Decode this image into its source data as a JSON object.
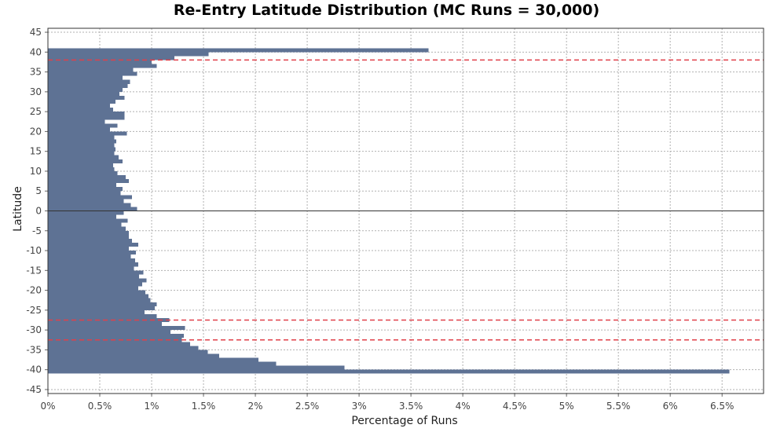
{
  "chart_data": {
    "type": "bar",
    "orientation": "horizontal",
    "title": "Re-Entry Latitude Distribution (MC Runs = 30,000)",
    "xlabel": "Percentage of Runs",
    "ylabel": "Latitude",
    "xlim": [
      0,
      6.9
    ],
    "ylim": [
      -46,
      46
    ],
    "x_ticks": [
      "0%",
      "0.5%",
      "1%",
      "1.5%",
      "2%",
      "2.5%",
      "3%",
      "3.5%",
      "4%",
      "4.5%",
      "5%",
      "5.5%",
      "6%",
      "6.5%"
    ],
    "x_tick_values": [
      0,
      0.5,
      1,
      1.5,
      2,
      2.5,
      3,
      3.5,
      4,
      4.5,
      5,
      5.5,
      6,
      6.5
    ],
    "y_ticks": [
      "45",
      "40",
      "35",
      "30",
      "25",
      "20",
      "15",
      "10",
      "5",
      "0",
      "-5",
      "-10",
      "-15",
      "-20",
      "-25",
      "-30",
      "-35",
      "-40",
      "-45"
    ],
    "y_tick_values": [
      45,
      40,
      35,
      30,
      25,
      20,
      15,
      10,
      5,
      0,
      -5,
      -10,
      -15,
      -20,
      -25,
      -30,
      -35,
      -40,
      -45
    ],
    "grid": true,
    "bin_width": 1,
    "bins": [
      -41,
      -40,
      -39,
      -38,
      -37,
      -36,
      -35,
      -34,
      -33,
      -32,
      -31,
      -30,
      -29,
      -28,
      -27,
      -26,
      -25,
      -24,
      -23,
      -22,
      -21,
      -20,
      -19,
      -18,
      -17,
      -16,
      -15,
      -14,
      -13,
      -12,
      -11,
      -10,
      -9,
      -8,
      -7,
      -6,
      -5,
      -4,
      -3,
      -2,
      -1,
      0,
      1,
      2,
      3,
      4,
      5,
      6,
      7,
      8,
      9,
      10,
      11,
      12,
      13,
      14,
      15,
      16,
      17,
      18,
      19,
      20,
      21,
      22,
      23,
      24,
      25,
      26,
      27,
      28,
      29,
      30,
      31,
      32,
      33,
      34,
      35,
      36,
      37,
      38,
      39,
      40
    ],
    "values": [
      6.57,
      2.86,
      2.2,
      2.03,
      1.65,
      1.54,
      1.45,
      1.37,
      1.29,
      1.31,
      1.18,
      1.32,
      1.1,
      1.17,
      1.05,
      0.93,
      1.03,
      1.05,
      0.99,
      0.97,
      0.94,
      0.87,
      0.91,
      0.95,
      0.88,
      0.92,
      0.83,
      0.87,
      0.84,
      0.8,
      0.85,
      0.78,
      0.87,
      0.81,
      0.78,
      0.78,
      0.75,
      0.71,
      0.77,
      0.66,
      0.73,
      0.86,
      0.8,
      0.73,
      0.81,
      0.7,
      0.72,
      0.66,
      0.78,
      0.75,
      0.67,
      0.64,
      0.63,
      0.72,
      0.68,
      0.64,
      0.65,
      0.64,
      0.66,
      0.64,
      0.76,
      0.6,
      0.67,
      0.55,
      0.74,
      0.74,
      0.63,
      0.6,
      0.65,
      0.74,
      0.69,
      0.72,
      0.77,
      0.79,
      0.72,
      0.86,
      0.82,
      1.05,
      1.0,
      1.22,
      1.55,
      3.67
    ],
    "reference_lines_y": [
      38,
      -27.5,
      -32.5
    ],
    "colors": {
      "bar": "#5e7294",
      "reference_line": "#e0404a",
      "zero_line": "#333333",
      "grid": "#b0b0b0"
    }
  }
}
